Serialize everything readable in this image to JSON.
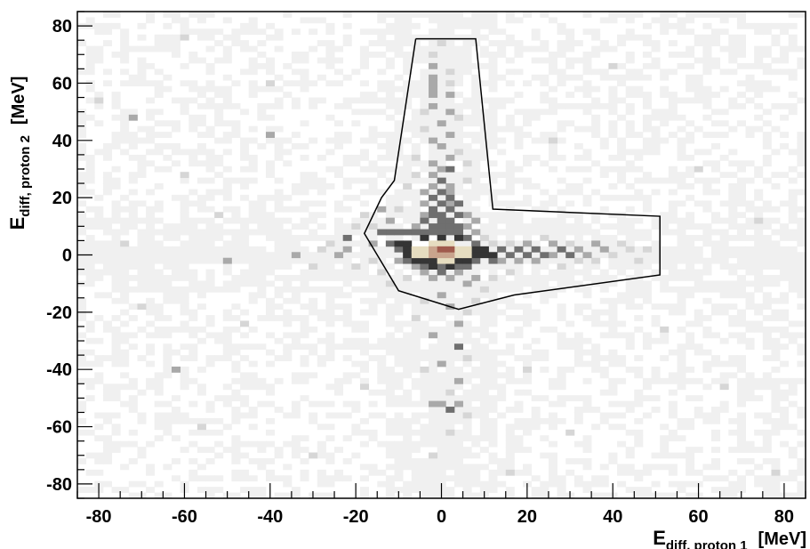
{
  "chart_data": {
    "type": "heatmap",
    "title": "",
    "xlabel": {
      "main": "E",
      "sub": "diff, proton 1",
      "unit": "[MeV]"
    },
    "ylabel": {
      "main": "E",
      "sub": "diff, proton 2",
      "unit": "[MeV]"
    },
    "xlim": [
      -85,
      85
    ],
    "ylim": [
      -85,
      85
    ],
    "x_ticks": [
      -80,
      -60,
      -40,
      -20,
      0,
      20,
      40,
      60,
      80
    ],
    "y_ticks": [
      -80,
      -60,
      -40,
      -20,
      0,
      20,
      40,
      60,
      80
    ],
    "grid": false,
    "bin_width": 2,
    "background_level": 1,
    "colors": {
      "background_bin": "#f0f0f0",
      "level_2": "#d6d6d6",
      "level_3": "#a9a9a9",
      "level_4": "#6f6f6f",
      "level_5": "#353535",
      "core_light": "#e6ddc0",
      "core_mid": "#c9a48d",
      "core_dark": "#a05a4c",
      "cut_line": "#000000"
    },
    "hot_spots": [
      {
        "x": 0,
        "y": 2,
        "level": 8
      },
      {
        "x": 2,
        "y": 2,
        "level": 8
      },
      {
        "x": -2,
        "y": 2,
        "level": 7
      },
      {
        "x": 0,
        "y": 0,
        "level": 7
      },
      {
        "x": 2,
        "y": 0,
        "level": 7
      },
      {
        "x": -2,
        "y": 0,
        "level": 7
      },
      {
        "x": 4,
        "y": 2,
        "level": 6
      },
      {
        "x": -4,
        "y": 2,
        "level": 6
      },
      {
        "x": 0,
        "y": 4,
        "level": 6
      },
      {
        "x": -4,
        "y": 0,
        "level": 6
      },
      {
        "x": 4,
        "y": 0,
        "level": 6
      },
      {
        "x": 0,
        "y": -2,
        "level": 6
      },
      {
        "x": 2,
        "y": -2,
        "level": 6
      },
      {
        "x": -6,
        "y": 2,
        "level": 6
      },
      {
        "x": 6,
        "y": 2,
        "level": 6
      },
      {
        "x": -2,
        "y": 4,
        "level": 6
      },
      {
        "x": 2,
        "y": 4,
        "level": 6
      },
      {
        "x": -6,
        "y": 0,
        "level": 6
      },
      {
        "x": 6,
        "y": 0,
        "level": 6
      },
      {
        "x": -8,
        "y": 2,
        "level": 5
      },
      {
        "x": -8,
        "y": 0,
        "level": 5
      },
      {
        "x": -8,
        "y": 4,
        "level": 5
      },
      {
        "x": 8,
        "y": 0,
        "level": 5
      },
      {
        "x": 8,
        "y": 2,
        "level": 5
      },
      {
        "x": -4,
        "y": 6,
        "level": 5
      },
      {
        "x": 0,
        "y": 6,
        "level": 5
      },
      {
        "x": 4,
        "y": 6,
        "level": 5
      },
      {
        "x": -6,
        "y": -2,
        "level": 5
      },
      {
        "x": -4,
        "y": -2,
        "level": 5
      },
      {
        "x": -2,
        "y": -2,
        "level": 5
      },
      {
        "x": 4,
        "y": -2,
        "level": 5
      },
      {
        "x": 6,
        "y": -2,
        "level": 5
      },
      {
        "x": -2,
        "y": -4,
        "level": 5
      },
      {
        "x": 2,
        "y": -4,
        "level": 5
      },
      {
        "x": 10,
        "y": 0,
        "level": 5
      },
      {
        "x": 12,
        "y": 0,
        "level": 5
      },
      {
        "x": 10,
        "y": 2,
        "level": 5
      },
      {
        "x": -10,
        "y": 4,
        "level": 5
      },
      {
        "x": -10,
        "y": 2,
        "level": 4
      },
      {
        "x": -12,
        "y": 4,
        "level": 4
      },
      {
        "x": -14,
        "y": 8,
        "level": 4
      },
      {
        "x": -12,
        "y": 8,
        "level": 4
      },
      {
        "x": -10,
        "y": 8,
        "level": 4
      },
      {
        "x": -8,
        "y": 8,
        "level": 4
      },
      {
        "x": -6,
        "y": 8,
        "level": 4
      },
      {
        "x": -4,
        "y": 8,
        "level": 4
      },
      {
        "x": -2,
        "y": 8,
        "level": 4
      },
      {
        "x": 0,
        "y": 8,
        "level": 4
      },
      {
        "x": 2,
        "y": 8,
        "level": 4
      },
      {
        "x": 4,
        "y": 8,
        "level": 4
      },
      {
        "x": 6,
        "y": 6,
        "level": 4
      },
      {
        "x": 8,
        "y": 4,
        "level": 4
      },
      {
        "x": -2,
        "y": 10,
        "level": 4
      },
      {
        "x": 0,
        "y": 10,
        "level": 4
      },
      {
        "x": 2,
        "y": 10,
        "level": 4
      },
      {
        "x": 4,
        "y": 10,
        "level": 4
      },
      {
        "x": -4,
        "y": 12,
        "level": 4
      },
      {
        "x": 0,
        "y": 12,
        "level": 4
      },
      {
        "x": 2,
        "y": 12,
        "level": 4
      },
      {
        "x": -2,
        "y": 14,
        "level": 4
      },
      {
        "x": 0,
        "y": 14,
        "level": 4
      },
      {
        "x": 4,
        "y": 14,
        "level": 4
      },
      {
        "x": -2,
        "y": 16,
        "level": 4
      },
      {
        "x": 2,
        "y": 16,
        "level": 4
      },
      {
        "x": 0,
        "y": 18,
        "level": 4
      },
      {
        "x": 4,
        "y": 18,
        "level": 4
      },
      {
        "x": -2,
        "y": 20,
        "level": 4
      },
      {
        "x": 2,
        "y": 20,
        "level": 4
      },
      {
        "x": 0,
        "y": 22,
        "level": 4
      },
      {
        "x": 0,
        "y": 26,
        "level": 4
      },
      {
        "x": 2,
        "y": 30,
        "level": 4
      },
      {
        "x": 14,
        "y": 2,
        "level": 4
      },
      {
        "x": 16,
        "y": 0,
        "level": 4
      },
      {
        "x": 18,
        "y": 2,
        "level": 4
      },
      {
        "x": 20,
        "y": 0,
        "level": 4
      },
      {
        "x": 22,
        "y": 2,
        "level": 4
      },
      {
        "x": 24,
        "y": 0,
        "level": 4
      },
      {
        "x": 28,
        "y": 2,
        "level": 4
      },
      {
        "x": 30,
        "y": 0,
        "level": 4
      },
      {
        "x": 12,
        "y": -2,
        "level": 4
      },
      {
        "x": 8,
        "y": -2,
        "level": 4
      },
      {
        "x": -8,
        "y": -2,
        "level": 4
      },
      {
        "x": -4,
        "y": -4,
        "level": 4
      },
      {
        "x": 0,
        "y": -4,
        "level": 4
      },
      {
        "x": 4,
        "y": -4,
        "level": 4
      },
      {
        "x": 6,
        "y": -4,
        "level": 4
      },
      {
        "x": 0,
        "y": -6,
        "level": 4
      },
      {
        "x": -22,
        "y": 6,
        "level": 4
      },
      {
        "x": 4,
        "y": -32,
        "level": 4
      },
      {
        "x": 2,
        "y": -54,
        "level": 4
      },
      {
        "x": -2,
        "y": -52,
        "level": 3
      },
      {
        "x": 0,
        "y": -52,
        "level": 3
      },
      {
        "x": 4,
        "y": -52,
        "level": 3
      },
      {
        "x": -34,
        "y": 0,
        "level": 3
      },
      {
        "x": -50,
        "y": -2,
        "level": 3
      },
      {
        "x": -62,
        "y": -40,
        "level": 3
      },
      {
        "x": -72,
        "y": 48,
        "level": 3
      },
      {
        "x": -40,
        "y": 42,
        "level": 3
      },
      {
        "x": -24,
        "y": 0,
        "level": 3
      },
      {
        "x": -22,
        "y": 2,
        "level": 3
      },
      {
        "x": -16,
        "y": 4,
        "level": 3
      },
      {
        "x": -6,
        "y": 10,
        "level": 3
      },
      {
        "x": 6,
        "y": 10,
        "level": 3
      },
      {
        "x": -4,
        "y": 14,
        "level": 3
      },
      {
        "x": 6,
        "y": 14,
        "level": 3
      },
      {
        "x": -4,
        "y": 18,
        "level": 3
      },
      {
        "x": 2,
        "y": 18,
        "level": 3
      },
      {
        "x": -4,
        "y": 22,
        "level": 3
      },
      {
        "x": 2,
        "y": 22,
        "level": 3
      },
      {
        "x": -2,
        "y": 24,
        "level": 3
      },
      {
        "x": 2,
        "y": 24,
        "level": 3
      },
      {
        "x": -2,
        "y": 28,
        "level": 3
      },
      {
        "x": 0,
        "y": 30,
        "level": 3
      },
      {
        "x": -2,
        "y": 32,
        "level": 3
      },
      {
        "x": 2,
        "y": 34,
        "level": 3
      },
      {
        "x": 0,
        "y": 38,
        "level": 3
      },
      {
        "x": -2,
        "y": 40,
        "level": 3
      },
      {
        "x": 2,
        "y": 42,
        "level": 3
      },
      {
        "x": 0,
        "y": 46,
        "level": 3
      },
      {
        "x": 2,
        "y": 50,
        "level": 3
      },
      {
        "x": -2,
        "y": 52,
        "level": 3
      },
      {
        "x": -2,
        "y": 56,
        "level": 3
      },
      {
        "x": -2,
        "y": 58,
        "level": 3
      },
      {
        "x": -2,
        "y": 60,
        "level": 3
      },
      {
        "x": -2,
        "y": 56,
        "level": 3
      },
      {
        "x": 2,
        "y": 56,
        "level": 3
      },
      {
        "x": -2,
        "y": 62,
        "level": 3
      },
      {
        "x": -2,
        "y": 66,
        "level": 3
      },
      {
        "x": 14,
        "y": -2,
        "level": 3
      },
      {
        "x": 18,
        "y": -2,
        "level": 3
      },
      {
        "x": 22,
        "y": -2,
        "level": 3
      },
      {
        "x": 26,
        "y": 0,
        "level": 3
      },
      {
        "x": 32,
        "y": 2,
        "level": 3
      },
      {
        "x": 34,
        "y": 0,
        "level": 3
      },
      {
        "x": 36,
        "y": 4,
        "level": 3
      },
      {
        "x": 38,
        "y": 2,
        "level": 3
      },
      {
        "x": 20,
        "y": 4,
        "level": 3
      },
      {
        "x": 26,
        "y": 4,
        "level": 3
      },
      {
        "x": -10,
        "y": -2,
        "level": 3
      },
      {
        "x": -6,
        "y": -4,
        "level": 3
      },
      {
        "x": -4,
        "y": -6,
        "level": 3
      },
      {
        "x": 4,
        "y": -6,
        "level": 3
      },
      {
        "x": 8,
        "y": -8,
        "level": 3
      },
      {
        "x": 2,
        "y": -8,
        "level": 3
      },
      {
        "x": -2,
        "y": -8,
        "level": 3
      },
      {
        "x": 6,
        "y": -10,
        "level": 3
      },
      {
        "x": 0,
        "y": -14,
        "level": 3
      },
      {
        "x": 2,
        "y": -18,
        "level": 3
      },
      {
        "x": 4,
        "y": -24,
        "level": 3
      },
      {
        "x": -2,
        "y": -28,
        "level": 3
      },
      {
        "x": 0,
        "y": -38,
        "level": 3
      },
      {
        "x": 4,
        "y": -44,
        "level": 3
      },
      {
        "x": -12,
        "y": 12,
        "level": 3
      },
      {
        "x": -14,
        "y": 16,
        "level": 3
      },
      {
        "x": 8,
        "y": 8,
        "level": 3
      },
      {
        "x": 8,
        "y": 12,
        "level": 3
      },
      {
        "x": -16,
        "y": 10,
        "level": 2
      },
      {
        "x": -18,
        "y": 14,
        "level": 2
      },
      {
        "x": -20,
        "y": 10,
        "level": 2
      },
      {
        "x": -26,
        "y": 4,
        "level": 2
      },
      {
        "x": -30,
        "y": -4,
        "level": 2
      },
      {
        "x": -28,
        "y": 2,
        "level": 2
      },
      {
        "x": -20,
        "y": -4,
        "level": 2
      },
      {
        "x": -16,
        "y": -2,
        "level": 2
      },
      {
        "x": -14,
        "y": -6,
        "level": 2
      },
      {
        "x": -12,
        "y": -10,
        "level": 2
      },
      {
        "x": -8,
        "y": -8,
        "level": 2
      },
      {
        "x": -10,
        "y": 16,
        "level": 2
      },
      {
        "x": -8,
        "y": 24,
        "level": 2
      },
      {
        "x": -6,
        "y": 28,
        "level": 2
      },
      {
        "x": -6,
        "y": 34,
        "level": 2
      },
      {
        "x": 6,
        "y": 26,
        "level": 2
      },
      {
        "x": 6,
        "y": 32,
        "level": 2
      },
      {
        "x": 4,
        "y": 36,
        "level": 2
      },
      {
        "x": -4,
        "y": 44,
        "level": 2
      },
      {
        "x": 4,
        "y": 48,
        "level": 2
      },
      {
        "x": -4,
        "y": 50,
        "level": 2
      },
      {
        "x": 2,
        "y": 60,
        "level": 2
      },
      {
        "x": 2,
        "y": 64,
        "level": 2
      },
      {
        "x": -2,
        "y": 70,
        "level": 2
      },
      {
        "x": 0,
        "y": 74,
        "level": 2
      },
      {
        "x": 10,
        "y": 6,
        "level": 2
      },
      {
        "x": 12,
        "y": 4,
        "level": 2
      },
      {
        "x": 16,
        "y": 4,
        "level": 2
      },
      {
        "x": 24,
        "y": 6,
        "level": 2
      },
      {
        "x": 30,
        "y": 4,
        "level": 2
      },
      {
        "x": 32,
        "y": -2,
        "level": 2
      },
      {
        "x": 36,
        "y": -2,
        "level": 2
      },
      {
        "x": 40,
        "y": 0,
        "level": 2
      },
      {
        "x": 42,
        "y": 4,
        "level": 2
      },
      {
        "x": 44,
        "y": 2,
        "level": 2
      },
      {
        "x": 46,
        "y": -2,
        "level": 2
      },
      {
        "x": 48,
        "y": 2,
        "level": 2
      },
      {
        "x": 28,
        "y": -4,
        "level": 2
      },
      {
        "x": 16,
        "y": -6,
        "level": 2
      },
      {
        "x": 12,
        "y": -8,
        "level": 2
      },
      {
        "x": 10,
        "y": -12,
        "level": 2
      },
      {
        "x": 8,
        "y": -16,
        "level": 2
      },
      {
        "x": 6,
        "y": -20,
        "level": 2
      },
      {
        "x": -4,
        "y": -16,
        "level": 2
      },
      {
        "x": -6,
        "y": -22,
        "level": 2
      },
      {
        "x": 6,
        "y": -36,
        "level": 2
      },
      {
        "x": -4,
        "y": -40,
        "level": 2
      },
      {
        "x": 2,
        "y": -48,
        "level": 2
      },
      {
        "x": 6,
        "y": -56,
        "level": 2
      },
      {
        "x": 2,
        "y": -62,
        "level": 2
      },
      {
        "x": -2,
        "y": -70,
        "level": 2
      },
      {
        "x": -52,
        "y": 14,
        "level": 2
      },
      {
        "x": -60,
        "y": 28,
        "level": 2
      },
      {
        "x": -74,
        "y": 4,
        "level": 2
      },
      {
        "x": -46,
        "y": -24,
        "level": 2
      },
      {
        "x": -70,
        "y": -18,
        "level": 2
      },
      {
        "x": -40,
        "y": 60,
        "level": 2
      },
      {
        "x": -80,
        "y": 54,
        "level": 2
      },
      {
        "x": -56,
        "y": -60,
        "level": 2
      },
      {
        "x": -30,
        "y": -70,
        "level": 2
      },
      {
        "x": 26,
        "y": 40,
        "level": 2
      },
      {
        "x": 40,
        "y": 66,
        "level": 2
      },
      {
        "x": 60,
        "y": 30,
        "level": 2
      },
      {
        "x": 74,
        "y": 12,
        "level": 2
      },
      {
        "x": 52,
        "y": -26,
        "level": 2
      },
      {
        "x": 66,
        "y": -46,
        "level": 2
      },
      {
        "x": 30,
        "y": -62,
        "level": 2
      },
      {
        "x": 78,
        "y": -76,
        "level": 2
      },
      {
        "x": 16,
        "y": -76,
        "level": 2
      },
      {
        "x": -60,
        "y": 76,
        "level": 2
      },
      {
        "x": -18,
        "y": -46,
        "level": 2
      },
      {
        "x": 20,
        "y": -40,
        "level": 2
      }
    ],
    "cut_polygon": {
      "x": [
        -6,
        8,
        12,
        51,
        51,
        17,
        4,
        -10,
        -18,
        -14,
        -11,
        -6
      ],
      "y": [
        75.5,
        75.5,
        16,
        13.5,
        -7,
        -14,
        -19,
        -12.5,
        7.5,
        20,
        26,
        75.5
      ]
    }
  }
}
